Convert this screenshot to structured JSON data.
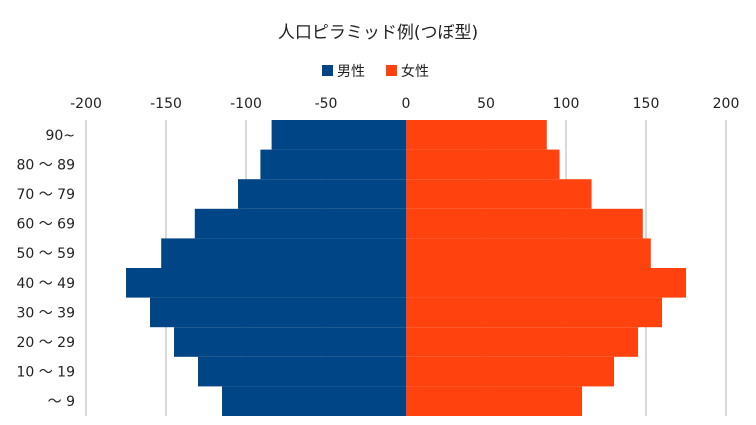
{
  "chart_data": {
    "type": "bar",
    "orientation": "horizontal",
    "title": "人口ピラミッド例(つぼ型)",
    "xlabel": "",
    "ylabel": "",
    "xlim": [
      -200,
      200
    ],
    "x_ticks": [
      -200,
      -150,
      -100,
      -50,
      0,
      50,
      100,
      150,
      200
    ],
    "tick_labels": [
      "-200",
      "-150",
      "-100",
      "-50",
      "0",
      "50",
      "100",
      "150",
      "200"
    ],
    "x_axis_position": "top",
    "grid": "vertical",
    "legend_position": "top",
    "categories": [
      "～ 9",
      "10 ～ 19",
      "20 ～ 29",
      "30 ～ 39",
      "40 ～ 49",
      "50 ～ 59",
      "60 ～ 69",
      "70 ～ 79",
      "80 ～ 89",
      "90~"
    ],
    "series": [
      {
        "name": "男性",
        "color": "#004586",
        "values": [
          -115,
          -130,
          -145,
          -160,
          -175,
          -153,
          -132,
          -105,
          -91,
          -84
        ]
      },
      {
        "name": "女性",
        "color": "#ff420e",
        "values": [
          110,
          130,
          145,
          160,
          175,
          153,
          148,
          116,
          96,
          88
        ]
      }
    ]
  }
}
